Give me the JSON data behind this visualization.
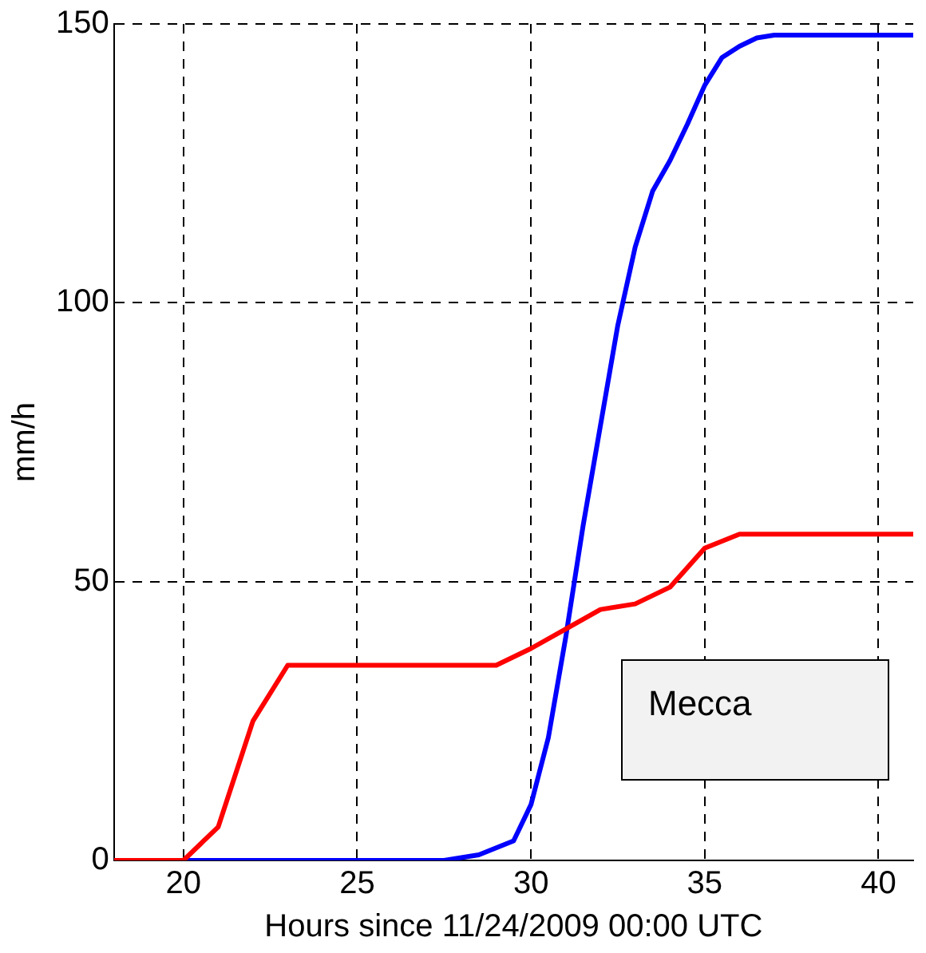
{
  "chart_data": {
    "type": "line",
    "xlabel": "Hours since 11/24/2009 00:00 UTC",
    "ylabel": "mm/h",
    "xlim": [
      18,
      41
    ],
    "xticks": [
      20,
      25,
      30,
      35,
      40
    ],
    "ylim": [
      0,
      150
    ],
    "yticks": [
      0,
      50,
      100,
      150
    ],
    "grid": true,
    "marker": "none",
    "line_style": "solid",
    "annotations": [
      "Mecca"
    ],
    "series": [
      {
        "color": "#ff0000",
        "x": [
          18,
          20,
          21,
          22,
          23,
          29,
          30,
          31,
          32,
          33,
          34,
          35,
          36,
          41
        ],
        "values": [
          0,
          0,
          6,
          25,
          35,
          35,
          38,
          41.5,
          45,
          46,
          49,
          56,
          58.5,
          58.5
        ]
      },
      {
        "color": "#0000ff",
        "x": [
          18,
          27.5,
          28.5,
          29.5,
          30,
          30.5,
          31,
          31.5,
          32,
          32.5,
          33,
          33.5,
          34,
          34.5,
          35,
          35.5,
          36,
          36.5,
          37,
          41
        ],
        "values": [
          0,
          0,
          1,
          3.5,
          10,
          22,
          40,
          60,
          78,
          96,
          110,
          120,
          125.5,
          132,
          139,
          144,
          146,
          147.5,
          148,
          148
        ]
      }
    ]
  }
}
